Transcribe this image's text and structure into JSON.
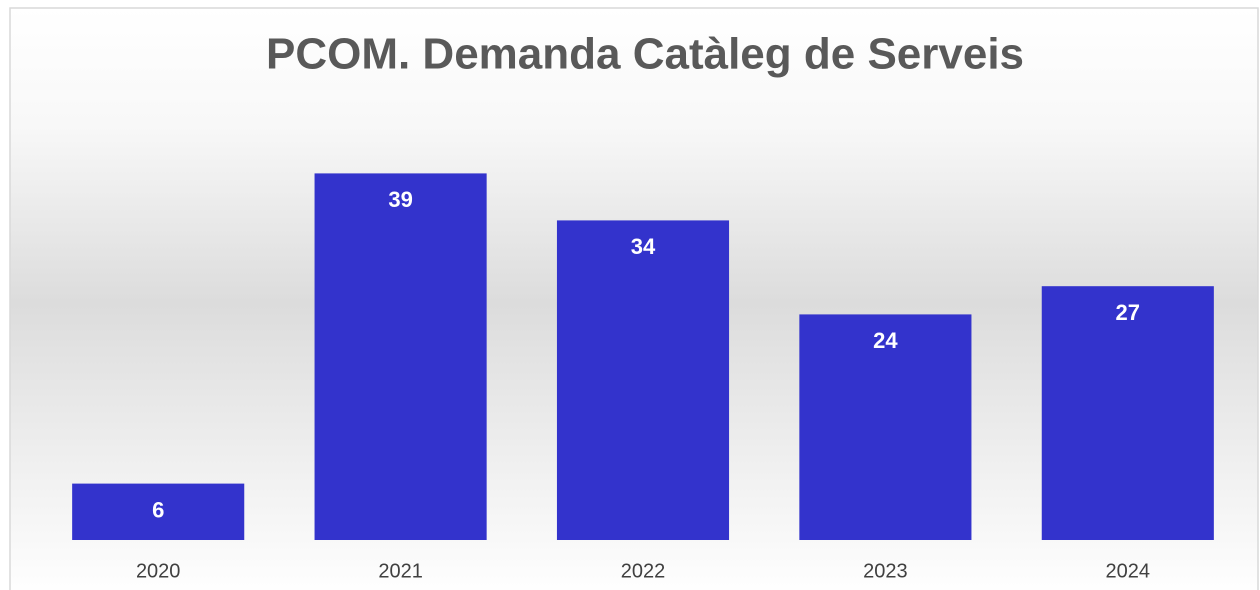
{
  "chart_data": {
    "type": "bar",
    "title": "PCOM. Demanda Catàleg de Serveis",
    "categories": [
      "2020",
      "2021",
      "2022",
      "2023",
      "2024"
    ],
    "values": [
      6,
      39,
      34,
      24,
      27
    ],
    "color": "#3333cc",
    "ylim": [
      0,
      45
    ]
  }
}
